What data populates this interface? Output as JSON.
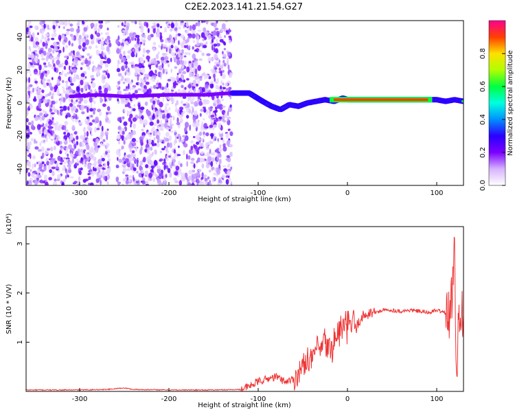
{
  "title": "C2E2.2023.141.21.54.G27",
  "chart_data": [
    {
      "type": "heatmap",
      "name": "spectrogram",
      "xlabel": "Height of straight line (km)",
      "ylabel": "Frequency (Hz)",
      "xlim": [
        -360,
        130
      ],
      "ylim": [
        -50,
        50
      ],
      "xticks": [
        -300,
        -200,
        -100,
        0,
        100
      ],
      "xtick_labels": [
        "-300",
        "-200",
        "-100",
        "0",
        "100"
      ],
      "yticks": [
        -40,
        -20,
        0,
        20,
        40
      ],
      "ytick_labels": [
        "-40",
        "-20",
        "0",
        "20",
        "40"
      ],
      "colorbar": {
        "label": "Normalized spectral amplitude",
        "range": [
          0,
          1
        ],
        "ticks": [
          0.0,
          0.2,
          0.4,
          0.6,
          0.8
        ],
        "tick_labels": [
          "0.0",
          "0.2",
          "0.4",
          "0.6",
          "0.8"
        ],
        "colors": [
          "#ffffff",
          "#d6b3ff",
          "#7a00ff",
          "#2b00ff",
          "#0090ff",
          "#00ffe0",
          "#00ff40",
          "#b0ff00",
          "#ffe000",
          "#ff4000",
          "#ff0090"
        ]
      },
      "noise_region": {
        "x": [
          -360,
          -130
        ],
        "gap_x": [
          -266,
          -258
        ]
      },
      "signal_line": {
        "x": [
          -310,
          -280,
          -250,
          -200,
          -160,
          -130,
          -110,
          -95,
          -85,
          -75,
          -65,
          -55,
          -45,
          -35,
          -25,
          -15,
          -5,
          0,
          20,
          50,
          80,
          100,
          110,
          120,
          130
        ],
        "y": [
          4,
          5,
          4,
          5,
          5,
          6,
          6,
          1,
          -2,
          -4,
          -1,
          -2,
          0,
          1,
          2,
          1,
          3,
          2,
          2,
          2,
          2,
          2,
          1,
          2,
          1
        ]
      },
      "bright_band": {
        "x": [
          -20,
          95
        ],
        "y": 2
      }
    },
    {
      "type": "line",
      "name": "snr",
      "xlabel": "Height of straight line (km)",
      "ylabel": "SNR (10 * V/V)",
      "y_multiplier": "(x10⁴)",
      "xlim": [
        -360,
        130
      ],
      "ylim": [
        0,
        3.35
      ],
      "xticks": [
        -300,
        -200,
        -100,
        0,
        100
      ],
      "xtick_labels": [
        "-300",
        "-200",
        "-100",
        "0",
        "100"
      ],
      "yticks": [
        1,
        2,
        3
      ],
      "ytick_labels": [
        "1",
        "2",
        "3"
      ],
      "color": "#ee3333",
      "series": [
        {
          "x": [
            -360,
            -330,
            -300,
            -270,
            -250,
            -240,
            -200,
            -150,
            -120,
            -110,
            -100,
            -90,
            -80,
            -70,
            -60,
            -50,
            -45,
            -40,
            -35,
            -30,
            -25,
            -20,
            -15,
            -10,
            -5,
            0,
            5,
            10,
            15,
            20,
            25,
            30,
            40,
            50,
            60,
            70,
            80,
            90,
            100,
            110,
            115,
            118,
            120,
            122,
            125,
            130
          ],
          "y": [
            0.03,
            0.03,
            0.03,
            0.04,
            0.07,
            0.04,
            0.03,
            0.03,
            0.04,
            0.1,
            0.2,
            0.25,
            0.3,
            0.2,
            0.25,
            0.5,
            0.7,
            0.6,
            0.9,
            0.8,
            1.0,
            0.8,
            1.0,
            1.2,
            1.3,
            1.3,
            1.4,
            1.3,
            1.5,
            1.55,
            1.6,
            1.6,
            1.65,
            1.65,
            1.63,
            1.65,
            1.63,
            1.6,
            1.65,
            1.6,
            1.5,
            2.2,
            3.2,
            0.3,
            1.6,
            1.6
          ]
        }
      ]
    }
  ]
}
